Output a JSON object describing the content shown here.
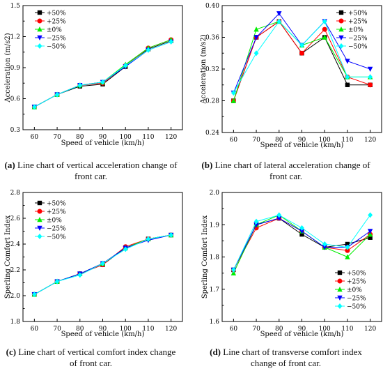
{
  "legend_labels": [
    "+50%",
    "+25%",
    "±0%",
    "−25%",
    "−50%"
  ],
  "series_colors": [
    "#000000",
    "#ff0000",
    "#00ee00",
    "#0000ff",
    "#00ffff"
  ],
  "series_markers": [
    "square",
    "circle",
    "triangle-up",
    "triangle-down",
    "diamond"
  ],
  "captions": [
    {
      "tag": "(a)",
      "text": " Line chart of vertical acceleration change of front car."
    },
    {
      "tag": "(b)",
      "text": " Line chart of lateral acceleration change of front car."
    },
    {
      "tag": "(c)",
      "text": " Line chart of vertical comfort index change of front car."
    },
    {
      "tag": "(d)",
      "text": " Line chart of transverse comfort index change of front car."
    }
  ],
  "chart_data": [
    {
      "type": "line",
      "xlabel": "Speed of vehicle (km/h)",
      "ylabel": "Acceleration (m/s2)",
      "x": [
        60,
        70,
        80,
        90,
        100,
        110,
        120
      ],
      "ylim": [
        0.3,
        1.5
      ],
      "yticks": [
        "0.3",
        "0.6",
        "0.9",
        "1.2",
        "1.5"
      ],
      "legend": "top-left",
      "series": [
        {
          "name": "+50%",
          "values": [
            0.52,
            0.64,
            0.72,
            0.74,
            0.91,
            1.08,
            1.16
          ]
        },
        {
          "name": "+25%",
          "values": [
            0.52,
            0.64,
            0.73,
            0.75,
            0.92,
            1.09,
            1.17
          ]
        },
        {
          "name": "±0%",
          "values": [
            0.52,
            0.64,
            0.73,
            0.76,
            0.93,
            1.09,
            1.17
          ]
        },
        {
          "name": "−25%",
          "values": [
            0.52,
            0.64,
            0.73,
            0.76,
            0.91,
            1.07,
            1.15
          ]
        },
        {
          "name": "−50%",
          "values": [
            0.52,
            0.64,
            0.73,
            0.76,
            0.92,
            1.07,
            1.15
          ]
        }
      ]
    },
    {
      "type": "line",
      "xlabel": "Speed of vehicle (km/h)",
      "ylabel": "Acceleration (m/s2)",
      "x": [
        60,
        70,
        80,
        90,
        100,
        110,
        120
      ],
      "ylim": [
        0.24,
        0.4
      ],
      "yticks": [
        "0.24",
        "0.28",
        "0.32",
        "0.36",
        "0.40"
      ],
      "legend": "top-right",
      "series": [
        {
          "name": "+50%",
          "values": [
            0.28,
            0.36,
            0.38,
            0.34,
            0.36,
            0.3,
            0.3
          ]
        },
        {
          "name": "+25%",
          "values": [
            0.28,
            0.36,
            0.38,
            0.34,
            0.37,
            0.31,
            0.3
          ]
        },
        {
          "name": "±0%",
          "values": [
            0.28,
            0.37,
            0.38,
            0.35,
            0.36,
            0.31,
            0.31
          ]
        },
        {
          "name": "−25%",
          "values": [
            0.29,
            0.36,
            0.39,
            0.35,
            0.38,
            0.33,
            0.32
          ]
        },
        {
          "name": "−50%",
          "values": [
            0.29,
            0.34,
            0.38,
            0.35,
            0.38,
            0.31,
            0.31
          ]
        }
      ]
    },
    {
      "type": "line",
      "xlabel": "Speed of vehicle (km/h)",
      "ylabel": "Sperling Comfort Index",
      "x": [
        60,
        70,
        80,
        90,
        100,
        110,
        120
      ],
      "ylim": [
        1.8,
        2.8
      ],
      "yticks": [
        "1.8",
        "2.0",
        "2.2",
        "2.4",
        "2.6",
        "2.8"
      ],
      "legend": "top-left",
      "series": [
        {
          "name": "+50%",
          "values": [
            2.01,
            2.11,
            2.17,
            2.24,
            2.37,
            2.44,
            2.47
          ]
        },
        {
          "name": "+25%",
          "values": [
            2.01,
            2.11,
            2.17,
            2.24,
            2.38,
            2.44,
            2.47
          ]
        },
        {
          "name": "±0%",
          "values": [
            2.01,
            2.11,
            2.17,
            2.25,
            2.37,
            2.44,
            2.47
          ]
        },
        {
          "name": "−25%",
          "values": [
            2.01,
            2.11,
            2.17,
            2.25,
            2.37,
            2.43,
            2.47
          ]
        },
        {
          "name": "−50%",
          "values": [
            2.01,
            2.11,
            2.16,
            2.25,
            2.36,
            2.44,
            2.47
          ]
        }
      ]
    },
    {
      "type": "line",
      "xlabel": "Speed of vehicle (km/h)",
      "ylabel": "Sperling Comfort Index",
      "x": [
        60,
        70,
        80,
        90,
        100,
        110,
        120
      ],
      "ylim": [
        1.6,
        2.0
      ],
      "yticks": [
        "1.6",
        "1.7",
        "1.8",
        "1.9",
        "2.0"
      ],
      "legend": "bottom-right",
      "series": [
        {
          "name": "+50%",
          "values": [
            1.76,
            1.9,
            1.92,
            1.87,
            1.83,
            1.84,
            1.86
          ]
        },
        {
          "name": "+25%",
          "values": [
            1.76,
            1.89,
            1.92,
            1.88,
            1.83,
            1.82,
            1.87
          ]
        },
        {
          "name": "±0%",
          "values": [
            1.75,
            1.9,
            1.93,
            1.88,
            1.83,
            1.8,
            1.87
          ]
        },
        {
          "name": "−25%",
          "values": [
            1.76,
            1.9,
            1.92,
            1.88,
            1.83,
            1.83,
            1.88
          ]
        },
        {
          "name": "−50%",
          "values": [
            1.76,
            1.91,
            1.93,
            1.89,
            1.84,
            1.83,
            1.93
          ]
        }
      ]
    }
  ]
}
